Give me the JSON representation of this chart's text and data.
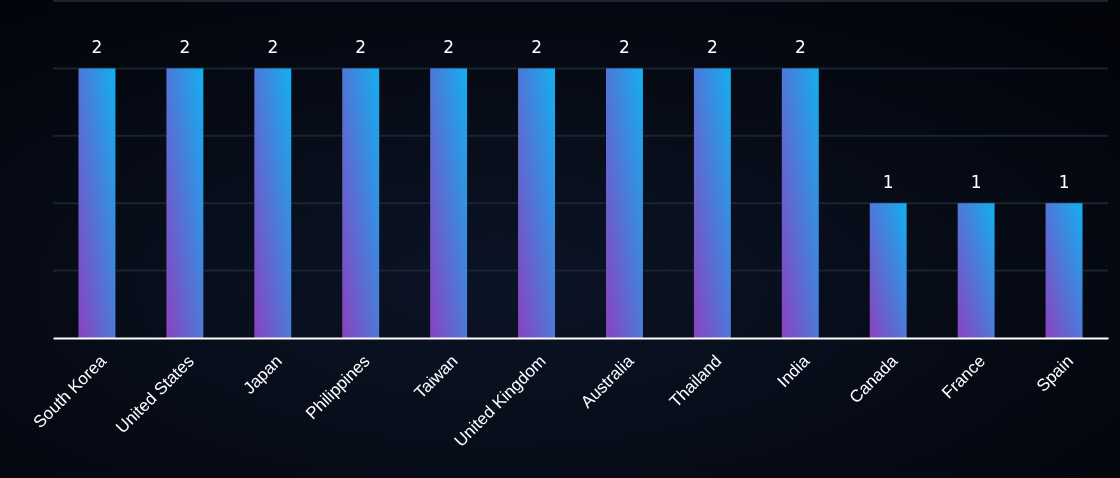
{
  "chart_data": {
    "type": "bar",
    "categories": [
      "South Korea",
      "United States",
      "Japan",
      "Philippines",
      "Taiwan",
      "United Kingdom",
      "Australia",
      "Thailand",
      "India",
      "Canada",
      "France",
      "Spain"
    ],
    "values": [
      2,
      2,
      2,
      2,
      2,
      2,
      2,
      2,
      2,
      1,
      1,
      1
    ],
    "color": "#12aff0",
    "ylim": [
      0,
      2.5
    ],
    "yticks": [
      {
        "value": 0,
        "label": null
      },
      {
        "value": 0.5,
        "label": null
      },
      {
        "value": 1,
        "label": null
      },
      {
        "value": 1.5,
        "label": null
      },
      {
        "value": 2,
        "label": null
      },
      {
        "value": 2.5,
        "label": null
      }
    ],
    "grid": "y",
    "tick_labels": "x",
    "data_labels": true
  }
}
